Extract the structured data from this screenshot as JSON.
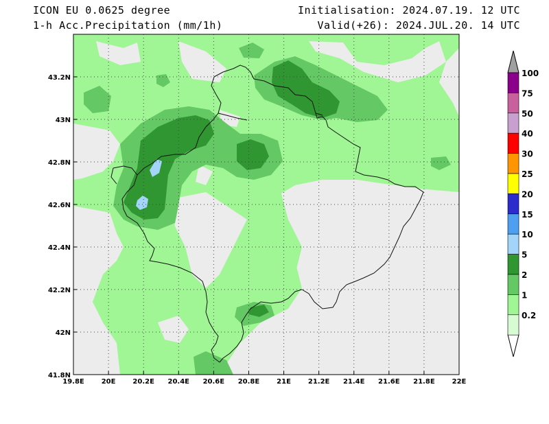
{
  "header": {
    "model": "ICON EU 0.0625 degree",
    "field": "1-h Acc.Precipitation (mm/1h)",
    "init": "Initialisation: 2024.07.19. 12 UTC",
    "valid": "Valid(+26): 2024.JUL.20. 14 UTC"
  },
  "axes": {
    "lat_labels": [
      "43.2N",
      "43N",
      "42.8N",
      "42.6N",
      "42.4N",
      "42.2N",
      "42N",
      "41.8N"
    ],
    "lon_labels": [
      "19.8E",
      "20E",
      "20.2E",
      "20.4E",
      "20.6E",
      "20.8E",
      "21E",
      "21.2E",
      "21.4E",
      "21.6E",
      "21.8E",
      "22E"
    ]
  },
  "colorbar": {
    "labels": [
      "100",
      "75",
      "50",
      "40",
      "30",
      "25",
      "20",
      "15",
      "10",
      "5",
      "2",
      "1",
      "0.2"
    ],
    "colors": [
      "#8b008b",
      "#c9609e",
      "#c8a0d0",
      "#ff0000",
      "#ff9500",
      "#ffff00",
      "#2c2ccc",
      "#4f9ff0",
      "#a3d5fb",
      "#2f9632",
      "#64c864",
      "#a0f594",
      "#d7fcd3"
    ]
  },
  "legend_colors": {
    "none": "#ececec",
    "p02": "#a0f594",
    "p1": "#64c864",
    "p2": "#2f9632",
    "p5": "#a3d5fb"
  }
}
